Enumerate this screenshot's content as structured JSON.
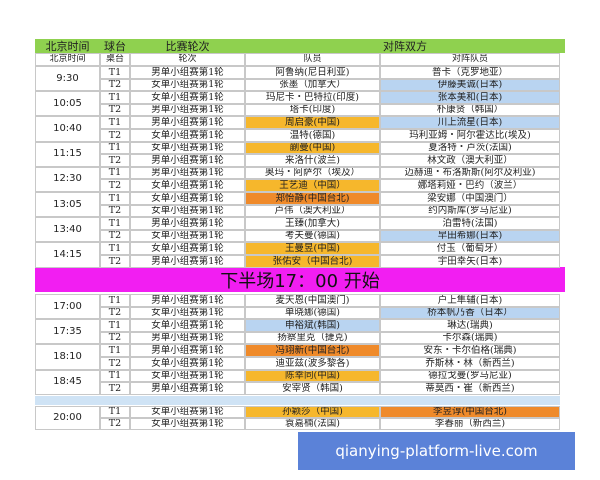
{
  "header": {
    "columns": [
      "北京时间",
      "球台",
      "比赛轮次",
      "对阵双方"
    ]
  },
  "subheader": [
    "北京时间",
    "桌台",
    "轮次",
    "队员",
    "对阵队员"
  ],
  "first_half": [
    {
      "time": "9:30",
      "matches": [
        {
          "table": "T1",
          "round": "男单小组赛第1轮",
          "player": "阿鲁纳(尼日利亚)",
          "opponent": "普卡（克罗地亚）"
        },
        {
          "table": "T2",
          "round": "女单小组赛第1轮",
          "player": "张墨（加拿大）",
          "opponent": "伊藤美诚(日本)"
        }
      ]
    },
    {
      "time": "10:05",
      "matches": [
        {
          "table": "T1",
          "round": "女单小组赛第1轮",
          "player": "玛尼卡・巴特拉(印度)",
          "opponent": "张本美和(日本)"
        },
        {
          "table": "T2",
          "round": "男单小组赛第1轮",
          "player": "塔卡(印度)",
          "opponent": "朴康贤（韩国）"
        }
      ]
    },
    {
      "time": "10:40",
      "matches": [
        {
          "table": "T1",
          "round": "男单小组赛第1轮",
          "player": "周启豪(中国)",
          "opponent": "川上流星(日本)"
        },
        {
          "table": "T2",
          "round": "女单小组赛第1轮",
          "player": "温特(德国)",
          "opponent": "玛利亚姆・阿尔霍达比(埃及)"
        }
      ]
    },
    {
      "time": "11:15",
      "matches": [
        {
          "table": "T1",
          "round": "女单小组赛第1轮",
          "player": "蒯曼(中国)",
          "opponent": "夏洛特・卢茨(法国)"
        },
        {
          "table": "T2",
          "round": "男单小组赛第1轮",
          "player": "来洛什(波兰)",
          "opponent": "林文政（澳大利亚）"
        }
      ]
    },
    {
      "time": "12:30",
      "matches": [
        {
          "table": "T1",
          "round": "男单小组赛第1轮",
          "player": "奥玛・阿萨尔（埃及）",
          "opponent": "迈赫迪・布洛斯斯(阿尔及利亚)"
        },
        {
          "table": "T2",
          "round": "女单小组赛第1轮",
          "player": "王艺迪（中国）",
          "opponent": "娜塔莉娅・巴约（波兰）"
        }
      ]
    },
    {
      "time": "13:05",
      "matches": [
        {
          "table": "T1",
          "round": "女单小组赛第1轮",
          "player": "郑怡静(中国台北)",
          "opponent": "梁安娜（中国澳门）"
        },
        {
          "table": "T2",
          "round": "女单小组赛第1轮",
          "player": "卢伟（澳大利亚）",
          "opponent": "约内斯库(罗马尼亚)"
        }
      ]
    },
    {
      "time": "13:40",
      "matches": [
        {
          "table": "T1",
          "round": "男单小组赛第1轮",
          "player": "王臻(加拿大)",
          "opponent": "泊雷特(法国)"
        },
        {
          "table": "T2",
          "round": "女单小组赛第1轮",
          "player": "考夫曼(德国)",
          "opponent": "早田希娜(日本)"
        }
      ]
    },
    {
      "time": "14:15",
      "matches": [
        {
          "table": "T1",
          "round": "女单小组赛第1轮",
          "player": "王曼昱(中国)",
          "opponent": "付玉（葡萄牙）"
        },
        {
          "table": "T2",
          "round": "男单小组赛第1轮",
          "player": "张佑安（中国台北)",
          "opponent": "宇田幸矢(日本)"
        }
      ]
    }
  ],
  "banner": "下半场17：00 开始",
  "second_half": [
    {
      "time": "17:00",
      "matches": [
        {
          "table": "T1",
          "round": "男单小组赛第1轮",
          "player": "麦天恩(中国澳门)",
          "opponent": "户上隼辅(日本)"
        },
        {
          "table": "T2",
          "round": "女单小组赛第1轮",
          "player": "单晓娜(德国)",
          "opponent": "桥本帆乃香（日本）"
        }
      ]
    },
    {
      "time": "17:35",
      "matches": [
        {
          "table": "T1",
          "round": "女单小组赛第1轮",
          "player": "申裕斌(韩国)",
          "opponent": "琳达(瑞典)"
        },
        {
          "table": "T2",
          "round": "男单小组赛第1轮",
          "player": "扬察里克（捷克)",
          "opponent": "卡尔森(瑞典)"
        }
      ]
    },
    {
      "time": "18:10",
      "matches": [
        {
          "table": "T1",
          "round": "男单小组赛第1轮",
          "player": "冯翊新(中国台北)",
          "opponent": "安东・卡尔伯格(瑞典)"
        },
        {
          "table": "T2",
          "round": "女单小组赛第1轮",
          "player": "迪亚兹(波多黎各)",
          "opponent": "乔斯林・林（新西兰)"
        }
      ]
    },
    {
      "time": "18:45",
      "matches": [
        {
          "table": "T1",
          "round": "女单小组赛第1轮",
          "player": "陈幸同(中国)",
          "opponent": "德拉戈曼(罗马尼亚)"
        },
        {
          "table": "T2",
          "round": "男单小组赛第1轮",
          "player": "安宰贤（韩国)",
          "opponent": "蒂莫西・崔（新西兰)"
        }
      ]
    }
  ],
  "evening": [
    {
      "time": "20:00",
      "matches": [
        {
          "table": "T1",
          "round": "女单小组赛第1轮",
          "player": "孙颖莎（中国)",
          "opponent": "李昱谆(中国台北)"
        },
        {
          "table": "T2",
          "round": "女单小组赛第1轮",
          "player": "袁嘉楠(法国)",
          "opponent": "李春丽（新西兰)"
        }
      ]
    }
  ],
  "watermark": "qianying-platform-live.com"
}
